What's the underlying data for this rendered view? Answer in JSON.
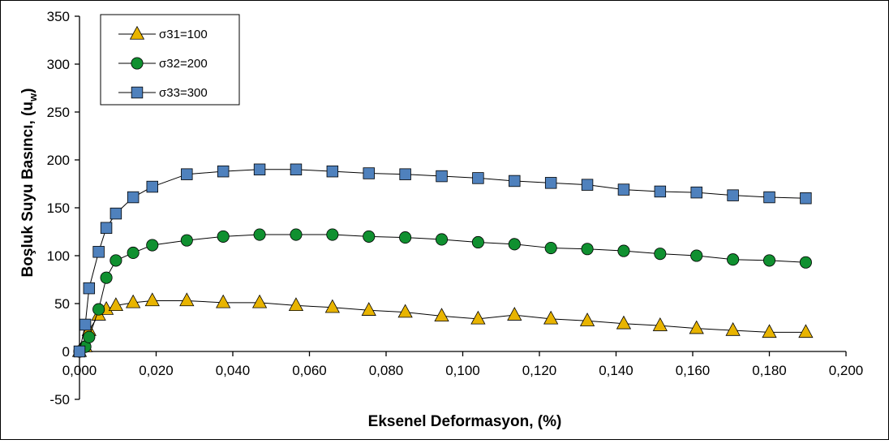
{
  "chart_data": {
    "type": "line",
    "xlabel": "Eksenel Deformasyon,  (%)",
    "ylabel": "Boşluk Suyu Basıncı,  (u",
    "ylabel_sub": "w",
    "ylabel_close": ")",
    "xlim": [
      0,
      0.2
    ],
    "ylim": [
      -50,
      350
    ],
    "x_ticks": [
      0,
      0.02,
      0.04,
      0.06,
      0.08,
      0.1,
      0.12,
      0.14,
      0.16,
      0.18,
      0.2
    ],
    "x_tick_labels": [
      "0,000",
      "0,020",
      "0,040",
      "0,060",
      "0,080",
      "0,100",
      "0,120",
      "0,140",
      "0,160",
      "0,180",
      "0,200"
    ],
    "y_ticks": [
      -50,
      0,
      50,
      100,
      150,
      200,
      250,
      300,
      350
    ],
    "y_tick_labels": [
      "-50",
      "0",
      "50",
      "100",
      "150",
      "200",
      "250",
      "300",
      "350"
    ],
    "grid": false,
    "legend_position": "top-left",
    "series": [
      {
        "name": "σ31=100",
        "marker": "triangle",
        "color": "#E8B400",
        "x": [
          0,
          0.0015,
          0.0025,
          0.005,
          0.007,
          0.0095,
          0.014,
          0.019,
          0.028,
          0.0375,
          0.047,
          0.0565,
          0.066,
          0.0755,
          0.085,
          0.0945,
          0.104,
          0.1135,
          0.123,
          0.1325,
          0.142,
          0.1515,
          0.161,
          0.1705,
          0.18,
          0.1895
        ],
        "y": [
          0,
          5,
          22,
          38,
          44,
          48,
          51,
          53,
          53,
          51,
          51,
          48,
          46,
          43,
          41,
          37,
          34,
          38,
          34,
          32,
          29,
          27,
          24,
          22,
          20,
          20
        ]
      },
      {
        "name": "σ32=200",
        "marker": "circle",
        "color": "#109030",
        "x": [
          0,
          0.0015,
          0.0025,
          0.005,
          0.007,
          0.0095,
          0.014,
          0.019,
          0.028,
          0.0375,
          0.047,
          0.0565,
          0.066,
          0.0755,
          0.085,
          0.0945,
          0.104,
          0.1135,
          0.123,
          0.1325,
          0.142,
          0.1515,
          0.161,
          0.1705,
          0.18,
          0.1895
        ],
        "y": [
          0,
          5,
          15,
          44,
          77,
          95,
          103,
          111,
          116,
          120,
          122,
          122,
          122,
          120,
          119,
          117,
          114,
          112,
          108,
          107,
          105,
          102,
          100,
          96,
          95,
          93
        ]
      },
      {
        "name": "σ33=300",
        "marker": "square",
        "color": "#4F81BD",
        "x": [
          0,
          0.0015,
          0.0025,
          0.005,
          0.007,
          0.0095,
          0.014,
          0.019,
          0.028,
          0.0375,
          0.047,
          0.0565,
          0.066,
          0.0755,
          0.085,
          0.0945,
          0.104,
          0.1135,
          0.123,
          0.1325,
          0.142,
          0.1515,
          0.161,
          0.1705,
          0.18,
          0.1895
        ],
        "y": [
          0,
          28,
          66,
          104,
          129,
          144,
          161,
          172,
          185,
          188,
          190,
          190,
          188,
          186,
          185,
          183,
          181,
          178,
          176,
          174,
          169,
          167,
          166,
          163,
          161,
          160
        ]
      }
    ]
  }
}
